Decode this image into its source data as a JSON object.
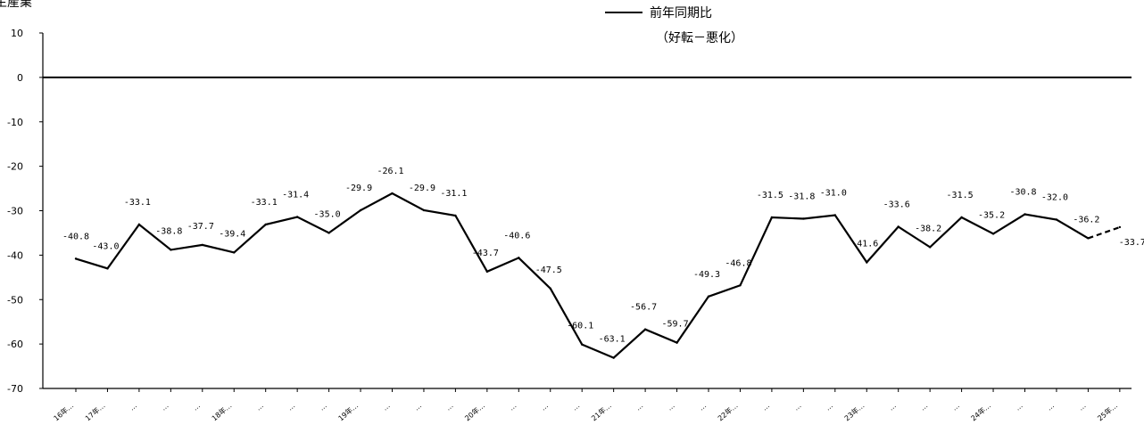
{
  "chart_data": {
    "type": "line",
    "title": "生産業",
    "xlabel": "",
    "ylabel": "",
    "ylim": [
      -70,
      10
    ],
    "y_ticks": [
      10,
      0,
      -10,
      -20,
      -30,
      -40,
      -50,
      -60,
      -70
    ],
    "grid": false,
    "legend_position": "top-center",
    "categories": [
      "16年…",
      "17年…",
      "…",
      "…",
      "…",
      "18年…",
      "…",
      "…",
      "…",
      "19年…",
      "…",
      "…",
      "…",
      "20年…",
      "…",
      "…",
      "…",
      "21年…",
      "…",
      "…",
      "…",
      "22年…",
      "…",
      "…",
      "…",
      "23年…",
      "…",
      "…",
      "…",
      "24年…",
      "…",
      "…",
      "…",
      "25年…"
    ],
    "series": [
      {
        "name": "前年同期比",
        "name_sub": "（好転－悪化）",
        "color": "#000000",
        "values": [
          -40.8,
          -43.0,
          -33.1,
          -38.8,
          -37.7,
          -39.4,
          -33.1,
          -31.4,
          -35.0,
          -29.9,
          -26.1,
          -29.9,
          -31.1,
          -43.7,
          -40.6,
          -47.5,
          -60.1,
          -63.1,
          -56.7,
          -59.7,
          -49.3,
          -46.8,
          -31.5,
          -31.8,
          -31.0,
          -41.6,
          -33.6,
          -38.2,
          -31.5,
          -35.2,
          -30.8,
          -32.0,
          -36.2,
          -33.7
        ],
        "labels": [
          "-40.8",
          "-43.0",
          "-33.1",
          "-38.8",
          "-37.7",
          "-39.4",
          "-33.1",
          "-31.4",
          "-35.0",
          "-29.9",
          "-26.1",
          "-29.9",
          "-31.1",
          "-43.7",
          "-40.6",
          "-47.5",
          "-60.1",
          "-63.1",
          "-56.7",
          "-59.7",
          "-49.3",
          "-46.8",
          "-31.5",
          "-31.8",
          "-31.0",
          "-41.6",
          "-33.6",
          "-38.2",
          "-31.5",
          "-35.2",
          "-30.8",
          "-32.0",
          "-36.2",
          "-33.7"
        ],
        "forecast_from_index": 32
      }
    ],
    "reference_line": 0
  }
}
